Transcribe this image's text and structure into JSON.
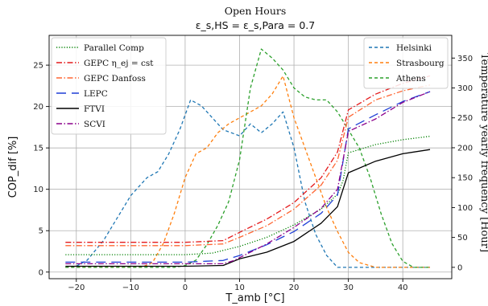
{
  "chart_data": {
    "type": "line",
    "title": "Open Hours",
    "subtitle": "ε_s,HS = ε_s,Para = 0.7",
    "xlabel": "T_amb [°C]",
    "ylabel": "COP_dif [%]",
    "y2label": "Temperature yearly frequency [Hour]",
    "xlim": [
      -25,
      49
    ],
    "ylim": [
      -0.8,
      28.6
    ],
    "y2lim": [
      -19,
      388
    ],
    "xticks": [
      -20,
      -10,
      0,
      10,
      20,
      30,
      40
    ],
    "yticks": [
      0,
      5,
      10,
      15,
      20,
      25
    ],
    "y2ticks": [
      0,
      50,
      100,
      150,
      200,
      250,
      300,
      350
    ],
    "grid": true,
    "legend_left_position": "top-left",
    "legend_right_position": "top-right",
    "series": [
      {
        "name": "Parallel Comp",
        "color": "#008000",
        "style": "dotted",
        "axis": "left",
        "points": [
          [
            -22,
            2.1
          ],
          [
            0,
            2.1
          ],
          [
            5,
            2.3
          ],
          [
            10,
            3.1
          ],
          [
            15,
            4.2
          ],
          [
            20,
            5.7
          ],
          [
            25,
            7.6
          ],
          [
            28,
            9.4
          ],
          [
            29,
            11.0
          ],
          [
            30,
            14.4
          ],
          [
            35,
            15.4
          ],
          [
            40,
            16.0
          ],
          [
            45,
            16.4
          ]
        ]
      },
      {
        "name": "GEPC η_ej = cst",
        "color": "#e41a1c",
        "style": "dashdot",
        "axis": "left",
        "points": [
          [
            -22,
            3.6
          ],
          [
            0,
            3.6
          ],
          [
            7,
            3.8
          ],
          [
            10,
            4.8
          ],
          [
            15,
            6.4
          ],
          [
            20,
            8.4
          ],
          [
            25,
            11.4
          ],
          [
            28,
            14.5
          ],
          [
            30,
            19.6
          ],
          [
            35,
            21.5
          ],
          [
            40,
            22.8
          ],
          [
            45,
            23.7
          ]
        ]
      },
      {
        "name": "GEPC Danfoss",
        "color": "#ff6633",
        "style": "dashdot",
        "axis": "left",
        "points": [
          [
            -22,
            3.2
          ],
          [
            0,
            3.2
          ],
          [
            7,
            3.4
          ],
          [
            10,
            4.2
          ],
          [
            15,
            5.6
          ],
          [
            20,
            7.6
          ],
          [
            25,
            10.5
          ],
          [
            28,
            13.5
          ],
          [
            30,
            18.7
          ],
          [
            35,
            20.8
          ],
          [
            40,
            21.9
          ],
          [
            45,
            22.6
          ]
        ]
      },
      {
        "name": "LEPC",
        "color": "#1f3fd6",
        "style": "longdash",
        "axis": "left",
        "points": [
          [
            -22,
            1.2
          ],
          [
            0,
            1.2
          ],
          [
            7,
            1.4
          ],
          [
            10,
            2.0
          ],
          [
            15,
            3.3
          ],
          [
            20,
            4.9
          ],
          [
            25,
            7.1
          ],
          [
            28,
            9.3
          ],
          [
            30,
            17.3
          ],
          [
            35,
            19.0
          ],
          [
            40,
            20.6
          ],
          [
            45,
            21.8
          ]
        ]
      },
      {
        "name": "FTVI",
        "color": "#000000",
        "style": "solid",
        "axis": "left",
        "points": [
          [
            -22,
            0.7
          ],
          [
            0,
            0.7
          ],
          [
            7,
            0.8
          ],
          [
            10,
            1.6
          ],
          [
            15,
            2.4
          ],
          [
            20,
            3.7
          ],
          [
            25,
            5.9
          ],
          [
            28,
            7.9
          ],
          [
            30,
            12.0
          ],
          [
            35,
            13.4
          ],
          [
            40,
            14.3
          ],
          [
            45,
            14.8
          ]
        ]
      },
      {
        "name": "SCVI",
        "color": "#8b008b",
        "style": "dashdot",
        "axis": "left",
        "points": [
          [
            -22,
            1.0
          ],
          [
            0,
            1.0
          ],
          [
            7,
            1.0
          ],
          [
            9,
            1.4
          ],
          [
            15,
            3.4
          ],
          [
            20,
            5.4
          ],
          [
            25,
            7.7
          ],
          [
            28,
            10.0
          ],
          [
            30,
            17.0
          ],
          [
            35,
            18.5
          ],
          [
            40,
            20.5
          ],
          [
            45,
            21.8
          ]
        ]
      },
      {
        "name": "Helsinki",
        "color": "#1f77b4",
        "style": "dashed",
        "axis": "right",
        "points": [
          [
            -22,
            0
          ],
          [
            -20,
            2
          ],
          [
            -18,
            12
          ],
          [
            -15,
            45
          ],
          [
            -10,
            120
          ],
          [
            -7,
            150
          ],
          [
            -5,
            160
          ],
          [
            -3,
            190
          ],
          [
            -1,
            230
          ],
          [
            1,
            280
          ],
          [
            3,
            270
          ],
          [
            5,
            250
          ],
          [
            7,
            230
          ],
          [
            10,
            220
          ],
          [
            12,
            240
          ],
          [
            14,
            225
          ],
          [
            16,
            240
          ],
          [
            18,
            260
          ],
          [
            20,
            200
          ],
          [
            22,
            110
          ],
          [
            24,
            55
          ],
          [
            26,
            20
          ],
          [
            28,
            0
          ],
          [
            30,
            0
          ],
          [
            45,
            0
          ]
        ]
      },
      {
        "name": "Strasbourg",
        "color": "#ff7f0e",
        "style": "dashed",
        "axis": "right",
        "points": [
          [
            -22,
            0
          ],
          [
            -8,
            0
          ],
          [
            -6,
            8
          ],
          [
            -4,
            40
          ],
          [
            -2,
            90
          ],
          [
            0,
            150
          ],
          [
            2,
            190
          ],
          [
            4,
            200
          ],
          [
            6,
            225
          ],
          [
            8,
            240
          ],
          [
            10,
            250
          ],
          [
            12,
            260
          ],
          [
            14,
            270
          ],
          [
            16,
            290
          ],
          [
            18,
            320
          ],
          [
            20,
            250
          ],
          [
            22,
            200
          ],
          [
            24,
            150
          ],
          [
            26,
            100
          ],
          [
            28,
            60
          ],
          [
            30,
            25
          ],
          [
            32,
            8
          ],
          [
            35,
            0
          ],
          [
            45,
            0
          ]
        ]
      },
      {
        "name": "Athens",
        "color": "#2ca02c",
        "style": "dashed",
        "axis": "right",
        "points": [
          [
            -22,
            0
          ],
          [
            -2,
            0
          ],
          [
            0,
            3
          ],
          [
            2,
            12
          ],
          [
            4,
            38
          ],
          [
            6,
            70
          ],
          [
            8,
            110
          ],
          [
            10,
            180
          ],
          [
            12,
            300
          ],
          [
            14,
            365
          ],
          [
            16,
            350
          ],
          [
            18,
            330
          ],
          [
            20,
            300
          ],
          [
            22,
            285
          ],
          [
            24,
            280
          ],
          [
            26,
            280
          ],
          [
            28,
            260
          ],
          [
            30,
            230
          ],
          [
            32,
            200
          ],
          [
            34,
            150
          ],
          [
            36,
            90
          ],
          [
            38,
            40
          ],
          [
            40,
            10
          ],
          [
            42,
            0
          ],
          [
            45,
            0
          ]
        ]
      }
    ]
  }
}
